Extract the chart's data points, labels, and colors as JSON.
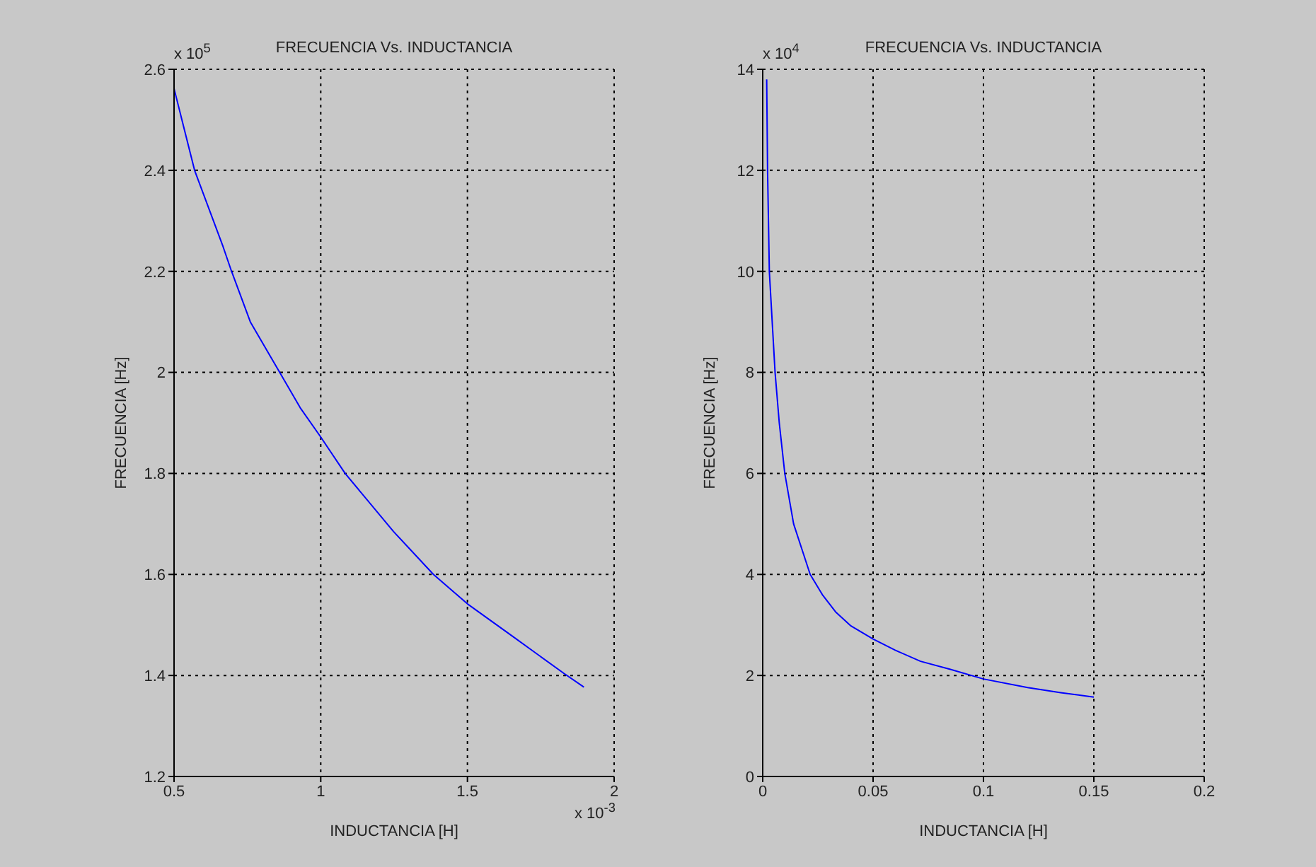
{
  "chart_data": [
    {
      "type": "line",
      "title": "FRECUENCIA Vs. INDUCTANCIA",
      "xlabel": "INDUCTANCIA [H]",
      "ylabel": "FRECUENCIA [Hz]",
      "annotations": [
        "x 10$^{5}$",
        "x 10$^{-3}$"
      ],
      "series": [
        {
          "color": "#0000ff",
          "x": [
            0.5,
            0.57,
            0.667,
            0.696,
            0.76,
            0.86,
            0.93,
            1.0,
            1.083,
            1.248,
            1.384,
            1.504,
            1.655,
            1.829,
            1.897
          ],
          "values": [
            2.562,
            2.4,
            2.249,
            2.2,
            2.1,
            2.0,
            1.93,
            1.872,
            1.8,
            1.685,
            1.6,
            1.54,
            1.477,
            1.404,
            1.377
          ]
        }
      ],
      "xlim": [
        0.5,
        2
      ],
      "xticks": [
        0.5,
        1,
        1.5,
        2
      ],
      "ylim": [
        1.2,
        2.6
      ],
      "yticks": [
        1.2,
        1.4,
        1.6,
        1.8,
        2,
        2.2,
        2.4,
        2.6
      ],
      "grid": true,
      "legend": false,
      "line_style": "solid",
      "marker": "none"
    },
    {
      "type": "line",
      "title": "FRECUENCIA Vs. INDUCTANCIA",
      "xlabel": "INDUCTANCIA [H]",
      "ylabel": "FRECUENCIA [Hz]",
      "annotations": [
        "x 10$^{4}$"
      ],
      "series": [
        {
          "color": "#0000ff",
          "x": [
            0.0018,
            0.0022,
            0.003,
            0.0056,
            0.0075,
            0.01,
            0.014,
            0.0215,
            0.027,
            0.033,
            0.04,
            0.05,
            0.06,
            0.0715,
            0.085,
            0.1,
            0.12,
            0.135,
            0.15
          ],
          "values": [
            13.8,
            12,
            10,
            8,
            7,
            6,
            5,
            4,
            3.6,
            3.26,
            2.98,
            2.72,
            2.5,
            2.28,
            2.12,
            1.93,
            1.76,
            1.66,
            1.57
          ]
        }
      ],
      "xlim": [
        0,
        0.2
      ],
      "xticks": [
        0,
        0.05,
        0.1,
        0.15,
        0.2
      ],
      "ylim": [
        0,
        14
      ],
      "yticks": [
        0,
        2,
        4,
        6,
        8,
        10,
        12,
        14
      ],
      "grid": true,
      "legend": false,
      "line_style": "solid",
      "marker": "none"
    }
  ]
}
